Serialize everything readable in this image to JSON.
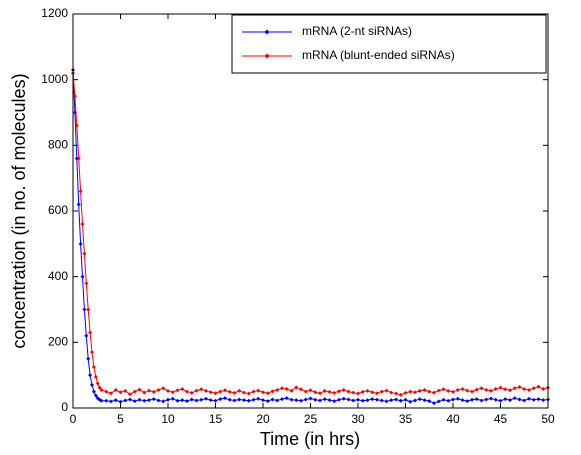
{
  "chart_data": {
    "type": "line",
    "xlabel": "Time (in hrs)",
    "ylabel": "concentration (in no. of molecules)",
    "xlim": [
      0,
      50
    ],
    "xticks": [
      0,
      5,
      10,
      15,
      20,
      25,
      30,
      35,
      40,
      45,
      50
    ],
    "ylim": [
      0,
      1200
    ],
    "yticks": [
      0,
      200,
      400,
      600,
      800,
      1000,
      1200
    ],
    "legend": "northeast",
    "x": [
      0,
      0.2,
      0.4,
      0.6,
      0.8,
      1,
      1.2,
      1.4,
      1.6,
      1.8,
      2,
      2.2,
      2.4,
      2.6,
      2.8,
      3,
      3.5,
      4,
      4.5,
      5,
      5.5,
      6,
      6.5,
      7,
      7.5,
      8,
      8.5,
      9,
      9.5,
      10,
      10.5,
      11,
      11.5,
      12,
      12.5,
      13,
      13.5,
      14,
      14.5,
      15,
      15.5,
      16,
      16.5,
      17,
      17.5,
      18,
      18.5,
      19,
      19.5,
      20,
      20.5,
      21,
      21.5,
      22,
      22.5,
      23,
      23.5,
      24,
      24.5,
      25,
      25.5,
      26,
      26.5,
      27,
      27.5,
      28,
      28.5,
      29,
      29.5,
      30,
      30.5,
      31,
      31.5,
      32,
      32.5,
      33,
      33.5,
      34,
      34.5,
      35,
      35.5,
      36,
      36.5,
      37,
      37.5,
      38,
      38.5,
      39,
      39.5,
      40,
      40.5,
      41,
      41.5,
      42,
      42.5,
      43,
      43.5,
      44,
      44.5,
      45,
      45.5,
      46,
      46.5,
      47,
      47.5,
      48,
      48.5,
      49,
      49.5,
      50
    ],
    "series": [
      {
        "name": "mRNA (2-nt siRNAs)",
        "color": "#0000ff",
        "values": [
          1030,
          900,
          760,
          620,
          500,
          400,
          300,
          220,
          150,
          100,
          70,
          50,
          38,
          30,
          25,
          22,
          22,
          20,
          24,
          19,
          23,
          26,
          21,
          25,
          22,
          24,
          27,
          23,
          20,
          25,
          28,
          22,
          24,
          21,
          26,
          23,
          25,
          28,
          24,
          22,
          27,
          30,
          25,
          23,
          26,
          24,
          22,
          25,
          28,
          24,
          21,
          26,
          23,
          27,
          30,
          25,
          24,
          22,
          26,
          29,
          25,
          23,
          27,
          24,
          21,
          25,
          28,
          26,
          23,
          25,
          22,
          24,
          27,
          25,
          23,
          20,
          24,
          26,
          22,
          25,
          19,
          23,
          27,
          24,
          21,
          15,
          20,
          25,
          22,
          26,
          28,
          24,
          21,
          25,
          27,
          23,
          26,
          29,
          25,
          22,
          27,
          24,
          30,
          26,
          23,
          28,
          25,
          27,
          24,
          26
        ]
      },
      {
        "name": "mRNA (blunt-ended siRNAs)",
        "color": "#ff0000",
        "values": [
          1020,
          950,
          860,
          760,
          660,
          560,
          470,
          380,
          300,
          230,
          170,
          125,
          95,
          75,
          62,
          55,
          50,
          45,
          55,
          48,
          52,
          42,
          50,
          56,
          47,
          53,
          49,
          55,
          60,
          52,
          48,
          54,
          58,
          50,
          46,
          53,
          57,
          52,
          48,
          45,
          50,
          54,
          49,
          46,
          52,
          47,
          44,
          50,
          53,
          48,
          45,
          51,
          55,
          60,
          58,
          52,
          63,
          57,
          50,
          54,
          48,
          45,
          52,
          49,
          46,
          51,
          55,
          50,
          47,
          44,
          49,
          52,
          48,
          45,
          50,
          53,
          47,
          44,
          40,
          46,
          50,
          48,
          52,
          55,
          50,
          47,
          53,
          57,
          52,
          49,
          55,
          58,
          53,
          50,
          56,
          60,
          55,
          52,
          58,
          62,
          57,
          54,
          60,
          64,
          58,
          55,
          60,
          65,
          58,
          62
        ]
      }
    ]
  }
}
